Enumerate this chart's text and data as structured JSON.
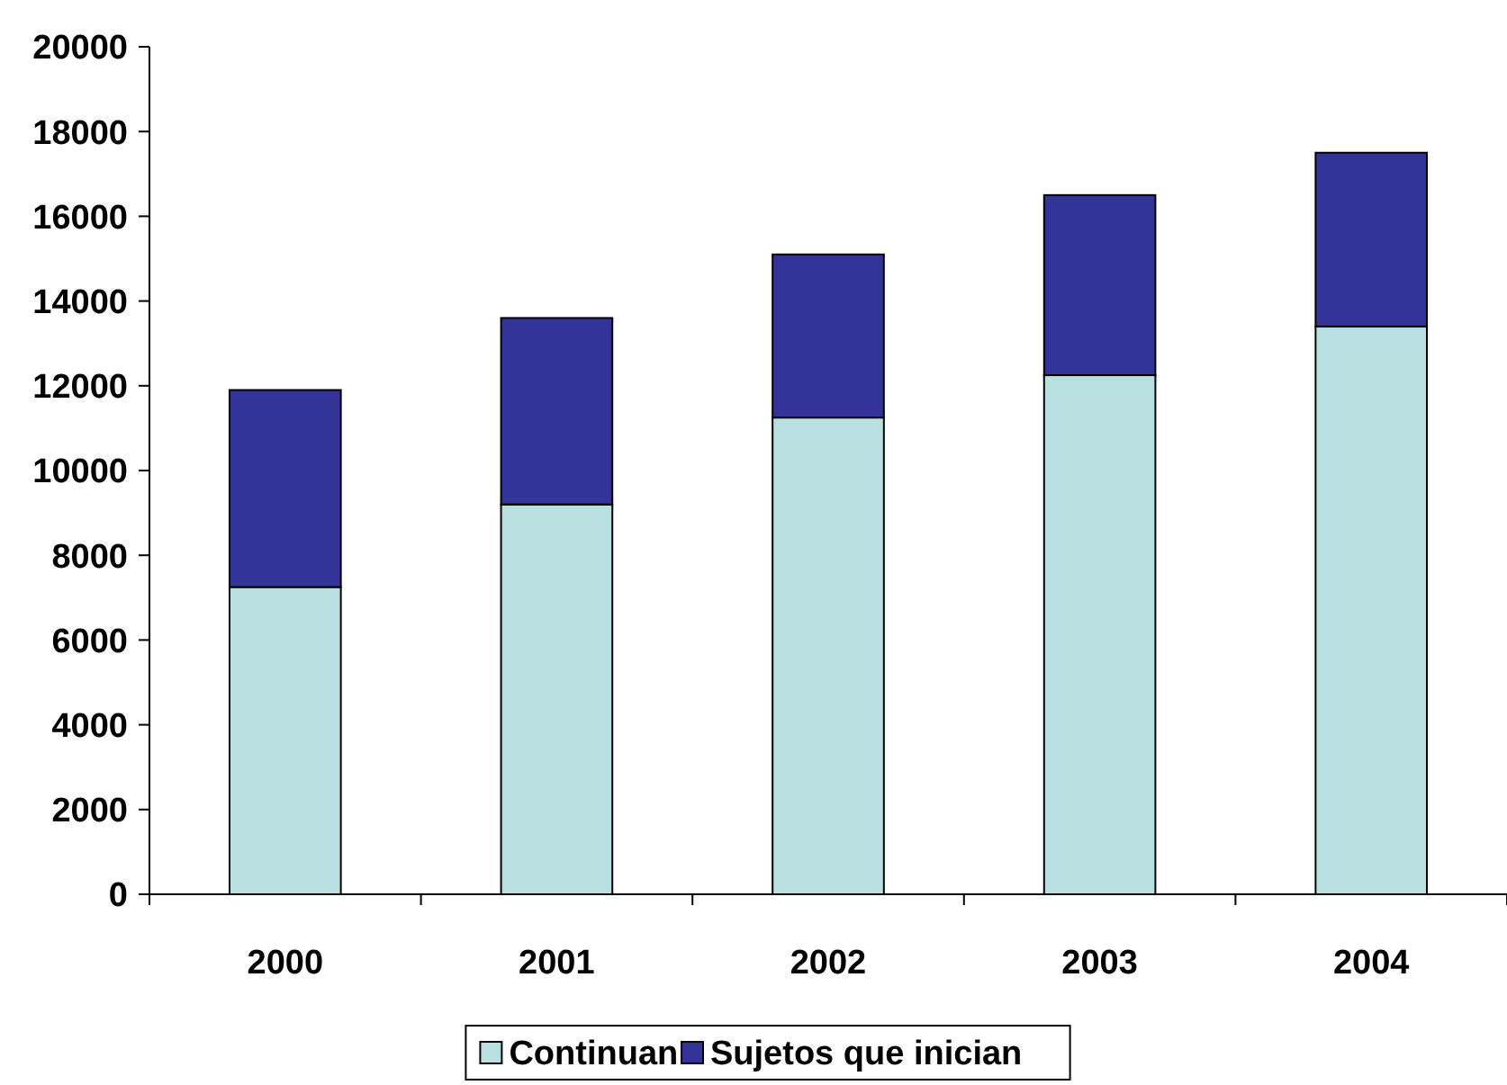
{
  "chart_data": {
    "type": "bar",
    "stacked": true,
    "categories": [
      "2000",
      "2001",
      "2002",
      "2003",
      "2004"
    ],
    "series": [
      {
        "name": "Continuan",
        "color": "#b8e0e0",
        "values": [
          7250,
          9200,
          11250,
          12250,
          13400
        ]
      },
      {
        "name": "Sujetos que inician",
        "color": "#333399",
        "values": [
          4650,
          4400,
          3850,
          4250,
          4100
        ]
      }
    ],
    "ylim": [
      0,
      20000
    ],
    "yticks": [
      0,
      2000,
      4000,
      6000,
      8000,
      10000,
      12000,
      14000,
      16000,
      18000,
      20000
    ],
    "grid": false,
    "legend": "bottom"
  }
}
